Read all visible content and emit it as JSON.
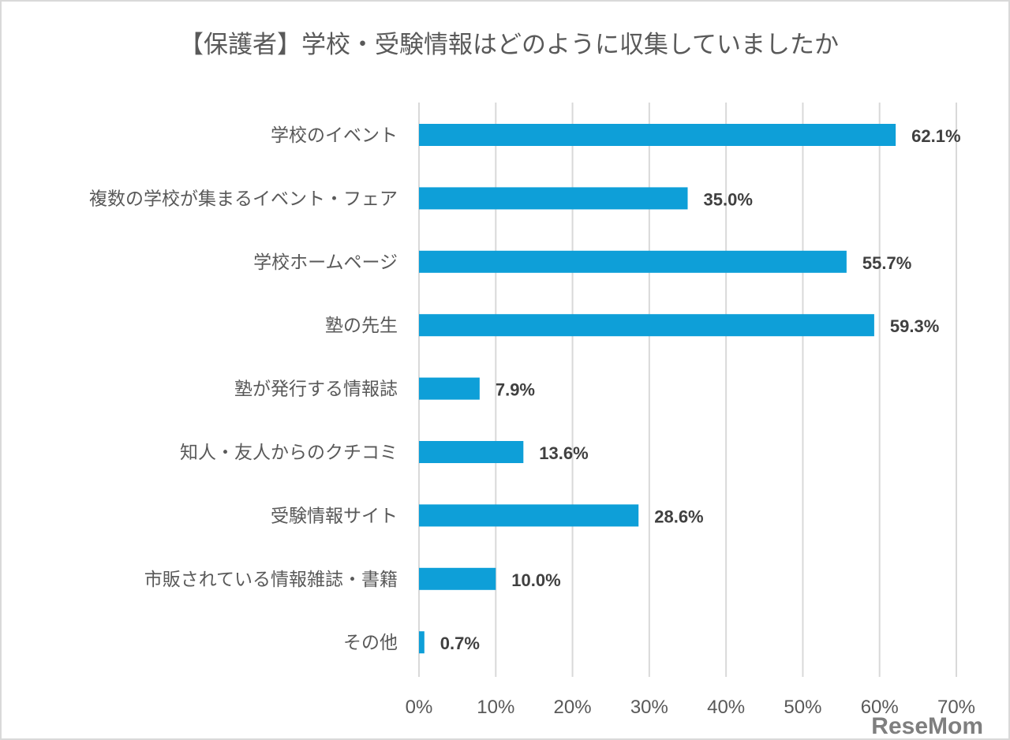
{
  "chart_data": {
    "type": "bar",
    "orientation": "horizontal",
    "title": "【保護者】学校・受験情報はどのように収集していましたか",
    "categories": [
      "学校のイベント",
      "複数の学校が集まるイベント・フェア",
      "学校ホームページ",
      "塾の先生",
      "塾が発行する情報誌",
      "知人・友人からのクチコミ",
      "受験情報サイト",
      "市販されている情報雑誌・書籍",
      "その他"
    ],
    "values": [
      62.1,
      35.0,
      55.7,
      59.3,
      7.9,
      13.6,
      28.6,
      10.0,
      0.7
    ],
    "data_labels": [
      "62.1%",
      "35.0%",
      "55.7%",
      "59.3%",
      "7.9%",
      "13.6%",
      "28.6%",
      "10.0%",
      "0.7%"
    ],
    "xlim": [
      0,
      70
    ],
    "xticks": [
      "0%",
      "10%",
      "20%",
      "30%",
      "40%",
      "50%",
      "60%",
      "70%"
    ],
    "grid": true,
    "legend": "none",
    "bar_color": "#0e9fd8",
    "gridline_color": "#d9d9d9"
  },
  "watermark": "ReseMom"
}
